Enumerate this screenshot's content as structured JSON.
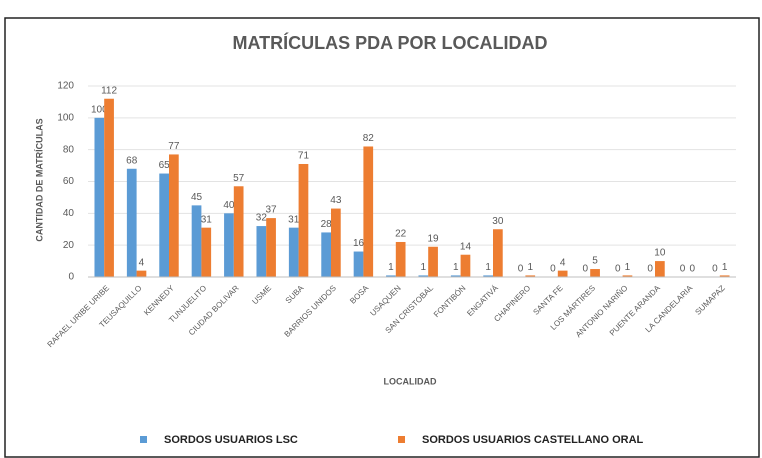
{
  "chart_data": {
    "type": "bar",
    "title": "MATRÍCULAS PDA POR LOCALIDAD",
    "y_label": "CANTIDAD DE MATRÍCULAS",
    "x_label": "LOCALIDAD",
    "categories": [
      "RAFAEL URIBE URIBE",
      "TEUSAQUILLO",
      "KENNEDY",
      "TUNJUELITO",
      "CIUDAD BOLIVAR",
      "USME",
      "SUBA",
      "BARRIOS UNIDOS",
      "BOSA",
      "USAQUEN",
      "SAN CRISTOBAL",
      "FONTIBÓN",
      "ENGATIVÁ",
      "CHAPINERO",
      "SANTA FE",
      "LOS MÁRTIRES",
      "ANTONIO NARIÑO",
      "PUENTE ARANDA",
      "LA CANDELARIA",
      "SUMAPAZ"
    ],
    "series": [
      {
        "name": "SORDOS USUARIOS LSC",
        "color": "#5b9bd5",
        "values": [
          100,
          68,
          65,
          45,
          40,
          32,
          31,
          28,
          16,
          1,
          1,
          1,
          1,
          0,
          0,
          0,
          0,
          0,
          0,
          0
        ]
      },
      {
        "name": "SORDOS USUARIOS CASTELLANO ORAL",
        "color": "#ed7d31",
        "values": [
          112,
          4,
          77,
          31,
          57,
          37,
          71,
          43,
          82,
          22,
          19,
          14,
          30,
          1,
          4,
          5,
          1,
          10,
          0,
          1
        ]
      }
    ],
    "ylim": [
      0,
      120
    ],
    "yticks": [
      0,
      20,
      40,
      60,
      80,
      100,
      120
    ],
    "grid": true,
    "legend": "bottom"
  }
}
